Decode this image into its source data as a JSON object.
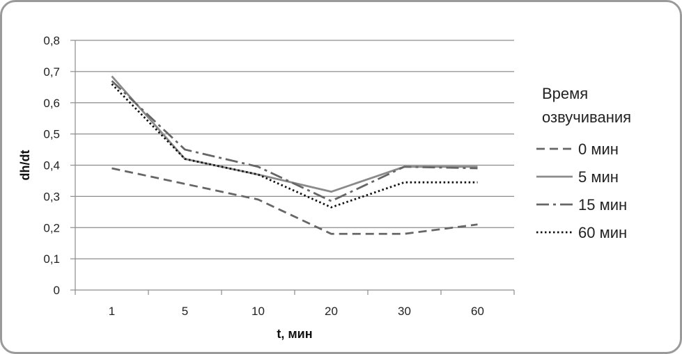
{
  "chart_data": {
    "type": "line",
    "categories": [
      "1",
      "5",
      "10",
      "20",
      "30",
      "60"
    ],
    "xlabel": "t, мин",
    "ylabel": "dh/dt",
    "ylim": [
      0,
      0.8
    ],
    "yticks": [
      "0",
      "0,1",
      "0,2",
      "0,3",
      "0,4",
      "0,5",
      "0,6",
      "0,7",
      "0,8"
    ],
    "grid": "horizontal",
    "legend": {
      "position": "right",
      "title_lines": [
        "Время",
        "озвучивания"
      ]
    },
    "series": [
      {
        "name": "0 мин",
        "style": "dashed",
        "color": "#666666",
        "values": [
          0.39,
          0.34,
          0.29,
          0.18,
          0.18,
          0.21
        ]
      },
      {
        "name": "5 мин",
        "style": "solid",
        "color": "#8a8a8a",
        "values": [
          0.685,
          0.42,
          0.37,
          0.315,
          0.395,
          0.395
        ]
      },
      {
        "name": "15 мин",
        "style": "dashdot",
        "color": "#666666",
        "values": [
          0.67,
          0.45,
          0.395,
          0.285,
          0.395,
          0.39
        ]
      },
      {
        "name": "60 мин",
        "style": "dotted",
        "color": "#111111",
        "values": [
          0.66,
          0.42,
          0.37,
          0.265,
          0.345,
          0.345
        ]
      }
    ]
  }
}
